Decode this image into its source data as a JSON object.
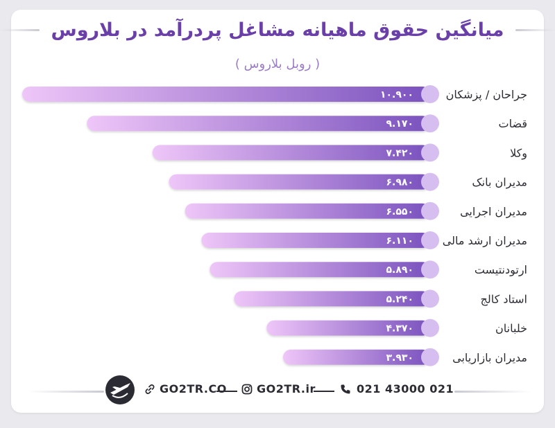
{
  "header": {
    "title": "میانگین حقوق ماهیانه مشاغل پردرآمد در بلاروس",
    "subtitle": "( روبل بلاروس )"
  },
  "chart_data": {
    "type": "bar",
    "orientation": "horizontal",
    "categories": [
      "جراحان / پزشکان",
      "قضات",
      "وکلا",
      "مدیران بانک",
      "مدیران اجرایی",
      "مدیران ارشد مالی",
      "ارتودنتیست",
      "استاد کالج",
      "خلبانان",
      "مدیران بازاریابی"
    ],
    "values": [
      10900,
      9170,
      7420,
      6980,
      6550,
      6110,
      5890,
      5240,
      4370,
      3930
    ],
    "value_labels": [
      "۱۰.۹۰۰",
      "۹.۱۷۰",
      "۷.۴۲۰",
      "۶.۹۸۰",
      "۶.۵۵۰",
      "۶.۱۱۰",
      "۵.۸۹۰",
      "۵.۲۴۰",
      "۴.۳۷۰",
      "۳.۹۳۰"
    ],
    "title": "میانگین حقوق ماهیانه مشاغل پردرآمد در بلاروس",
    "subtitle": "( روبل بلاروس )",
    "xlabel": "",
    "ylabel": "",
    "colors": {
      "bar_start": "#efc6f8",
      "bar_end": "#7a52be",
      "marker": "#d6bff0"
    },
    "grid": false,
    "legend": "none"
  },
  "footer": {
    "phone": "021 43000 021",
    "instagram": "GO2TR.ir",
    "website": "GO2TR.CO",
    "icons": {
      "phone": "phone-icon",
      "instagram": "instagram-icon",
      "website": "link-icon",
      "logo": "go2tr-logo-icon"
    }
  }
}
